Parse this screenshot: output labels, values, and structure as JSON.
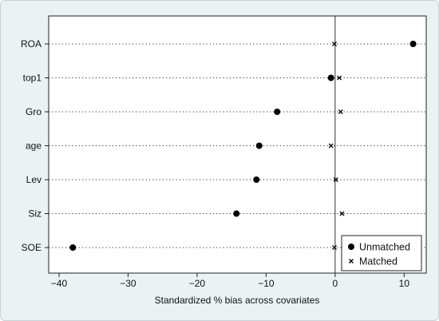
{
  "chart_data": {
    "type": "scatter",
    "title": "",
    "xlabel": "Standardized % bias across covariates",
    "ylabel": "",
    "xlim": [
      -41.5,
      13.2
    ],
    "xticks": [
      -40,
      -30,
      -20,
      -10,
      0,
      10
    ],
    "xtick_labels": [
      "−40",
      "−30",
      "−20",
      "−10",
      "0",
      "10"
    ],
    "categories": [
      "ROA",
      "top1",
      "Gro",
      "age",
      "Lev",
      "Siz",
      "SOE"
    ],
    "reference_line_x": 0,
    "grid": "dotted horizontal lines per covariate",
    "legend_position": "bottom-right",
    "series": [
      {
        "name": "Unmatched",
        "marker": "filled-circle",
        "color": "#000000",
        "values": [
          11.3,
          -0.6,
          -8.4,
          -11.0,
          -11.4,
          -14.3,
          -38.0
        ]
      },
      {
        "name": "Matched",
        "marker": "x",
        "color": "#000000",
        "values": [
          -0.1,
          0.6,
          0.8,
          -0.6,
          0.1,
          1.0,
          -0.1
        ]
      }
    ]
  }
}
